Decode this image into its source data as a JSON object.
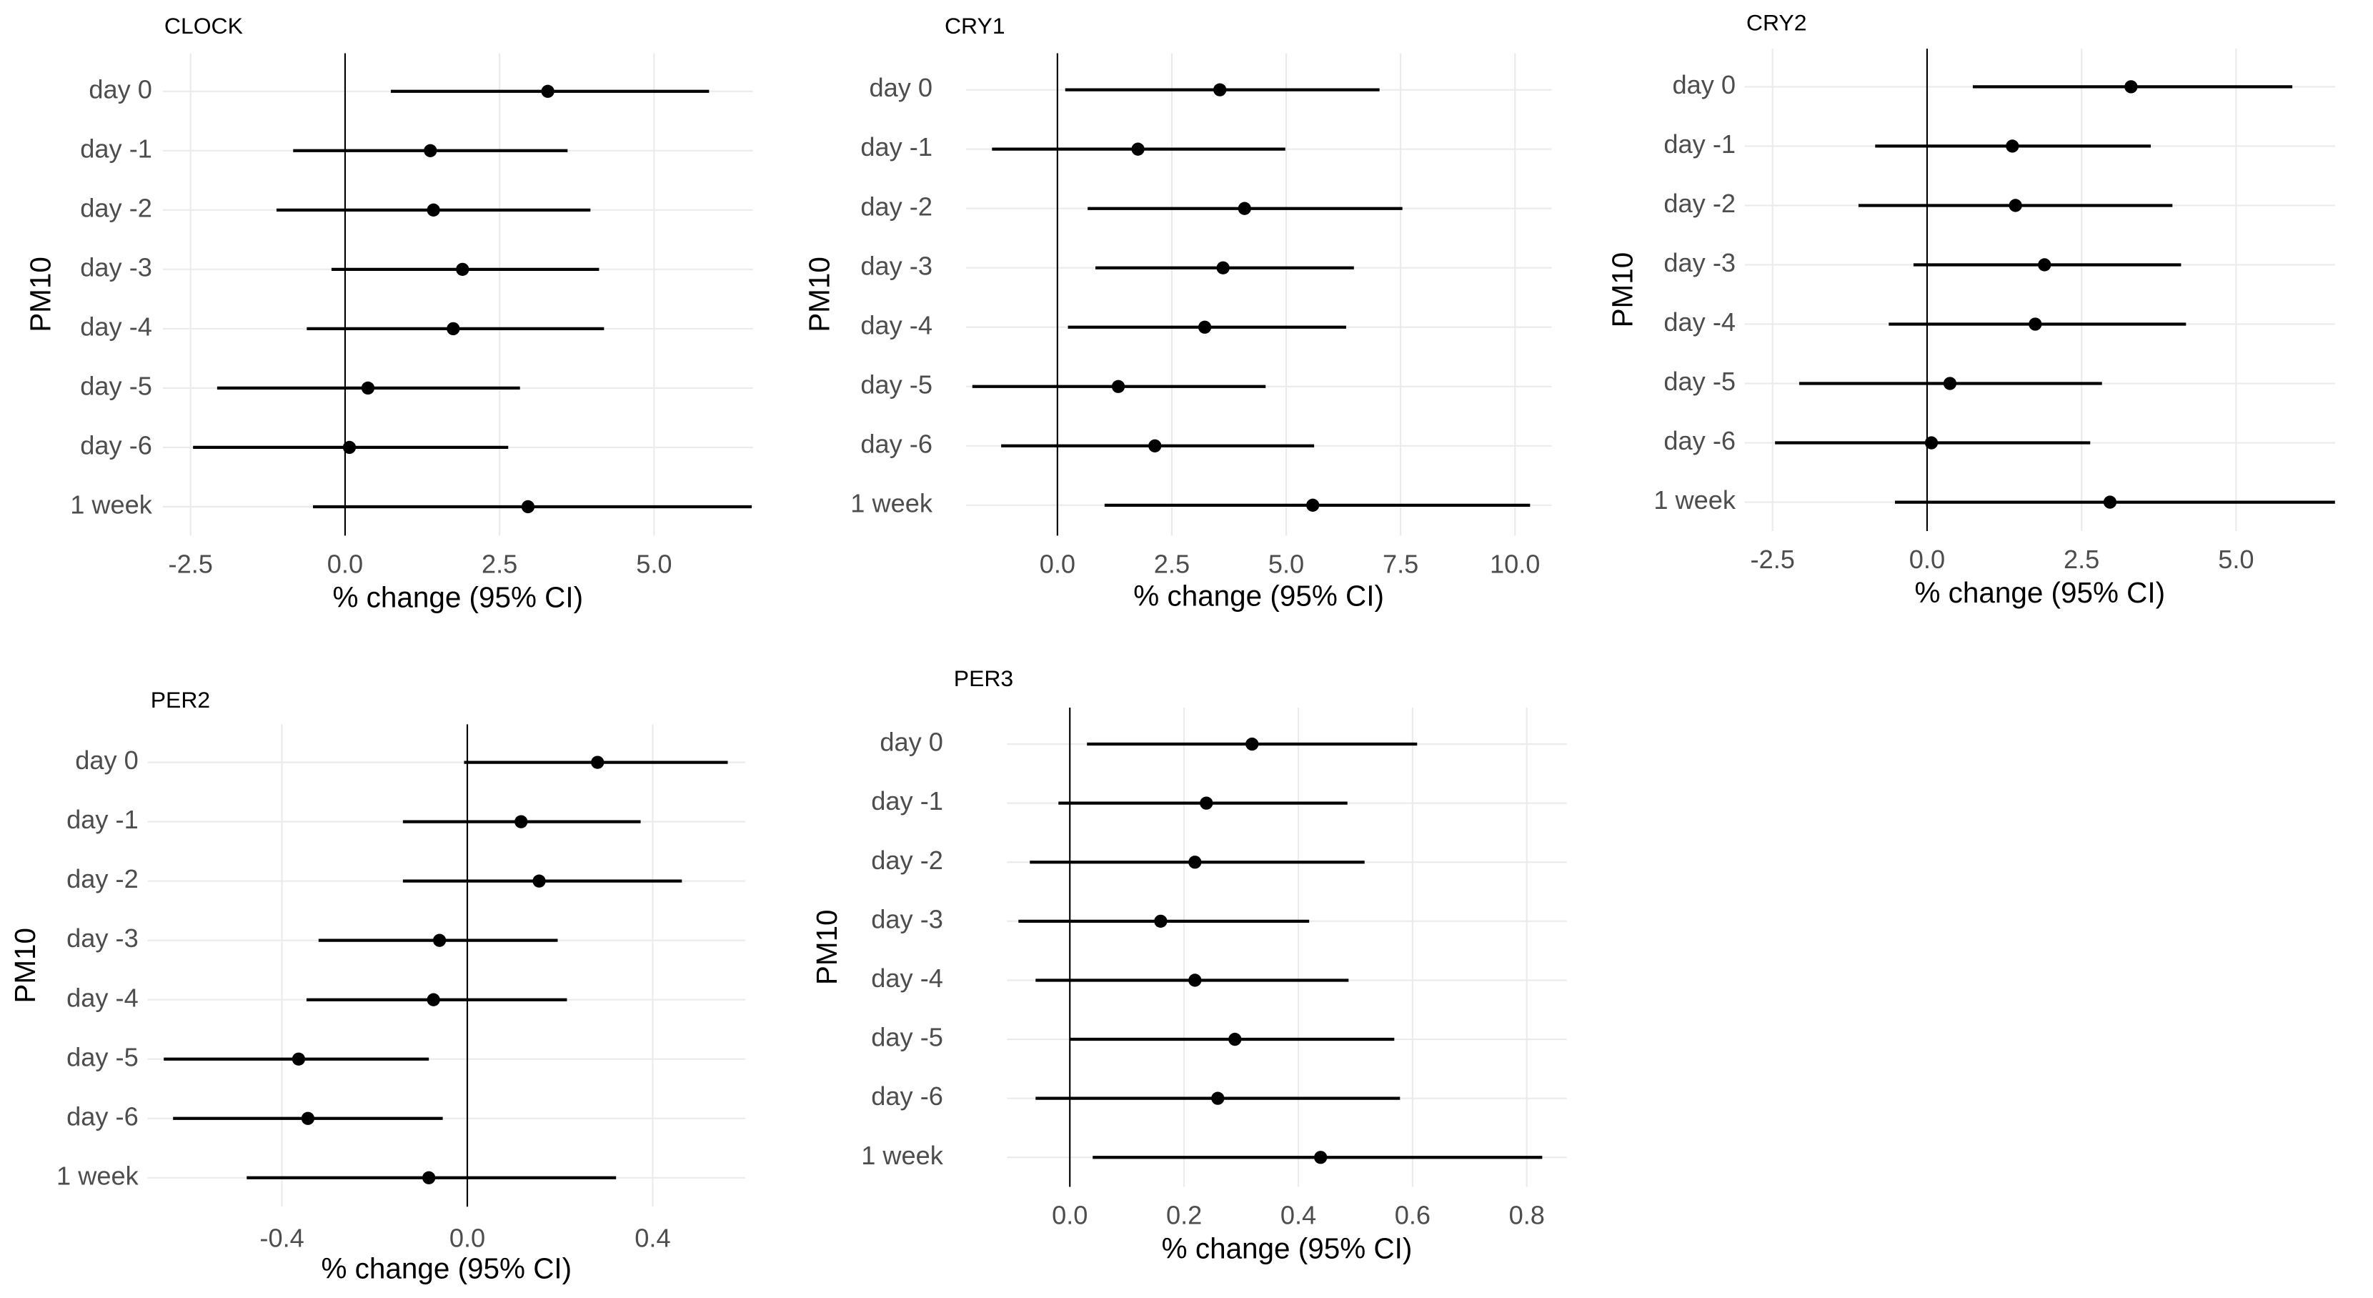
{
  "chart_data": [
    {
      "type": "forest",
      "title": "CLOCK",
      "xlabel": "% change (95% CI)",
      "ylabel": "PM10",
      "categories": [
        "day 0",
        "day -1",
        "day -2",
        "day -3",
        "day -4",
        "day -5",
        "day -6",
        "1 week"
      ],
      "values": [
        3.28,
        1.38,
        1.43,
        1.9,
        1.75,
        0.37,
        0.07,
        2.96
      ],
      "lower": [
        0.74,
        -0.84,
        -1.11,
        -0.22,
        -0.62,
        -2.07,
        -2.46,
        -0.52
      ],
      "upper": [
        5.89,
        3.6,
        3.97,
        4.11,
        4.19,
        2.83,
        2.64,
        6.58
      ],
      "xlim": [
        -2.95,
        6.6
      ],
      "xticks": [
        -2.5,
        {
          "value": 0,
          "label": "0.0"
        },
        2.5,
        {
          "value": 5,
          "label": "5.0"
        }
      ],
      "ref_line": 0,
      "grid": true,
      "color": "#000000"
    },
    {
      "type": "forest",
      "title": "CRY1",
      "xlabel": "% change (95% CI)",
      "ylabel": "PM10",
      "categories": [
        "day 0",
        "day -1",
        "day -2",
        "day -3",
        "day -4",
        "day -5",
        "day -6",
        "1 week"
      ],
      "values": [
        3.55,
        1.76,
        4.09,
        3.62,
        3.22,
        1.33,
        2.13,
        5.58
      ],
      "lower": [
        0.17,
        -1.43,
        0.66,
        0.83,
        0.23,
        -1.86,
        -1.23,
        1.03
      ],
      "upper": [
        7.04,
        4.98,
        7.54,
        6.48,
        6.31,
        4.55,
        5.61,
        10.33
      ],
      "xlim": [
        -2.0,
        10.8
      ],
      "xticks": [
        {
          "value": 0,
          "label": "0.0"
        },
        2.5,
        {
          "value": 5,
          "label": "5.0"
        },
        7.5,
        {
          "value": 10,
          "label": "10.0"
        }
      ],
      "ref_line": 0,
      "grid": true,
      "color": "#000000"
    },
    {
      "type": "forest",
      "title": "CRY2",
      "xlabel": "% change (95% CI)",
      "ylabel": "PM10",
      "categories": [
        "day 0",
        "day -1",
        "day -2",
        "day -3",
        "day -4",
        "day -5",
        "day -6",
        "1 week"
      ],
      "values": [
        3.3,
        1.38,
        1.43,
        1.9,
        1.75,
        0.37,
        0.07,
        2.96
      ],
      "lower": [
        0.74,
        -0.84,
        -1.11,
        -0.22,
        -0.62,
        -2.07,
        -2.46,
        -0.52
      ],
      "upper": [
        5.91,
        3.62,
        3.97,
        4.11,
        4.19,
        2.83,
        2.64,
        6.6
      ],
      "xlim": [
        -2.95,
        6.6
      ],
      "xticks": [
        -2.5,
        {
          "value": 0,
          "label": "0.0"
        },
        2.5,
        {
          "value": 5,
          "label": "5.0"
        }
      ],
      "ref_line": 0,
      "grid": true,
      "color": "#000000"
    },
    {
      "type": "forest",
      "title": "PER2",
      "xlabel": "% change (95% CI)",
      "ylabel": "PM10",
      "categories": [
        "day 0",
        "day -1",
        "day -2",
        "day -3",
        "day -4",
        "day -5",
        "day -6",
        "1 week"
      ],
      "values": [
        0.281,
        0.116,
        0.155,
        -0.06,
        -0.073,
        -0.364,
        -0.344,
        -0.083
      ],
      "lower": [
        -0.007,
        -0.139,
        -0.139,
        -0.321,
        -0.347,
        -0.655,
        -0.635,
        -0.476
      ],
      "upper": [
        0.562,
        0.374,
        0.463,
        0.195,
        0.215,
        -0.083,
        -0.053,
        0.321
      ],
      "xlim": [
        -0.69,
        0.6
      ],
      "xticks": [
        -0.4,
        {
          "value": 0,
          "label": "0.0"
        },
        0.4
      ],
      "ref_line": 0,
      "grid": true,
      "color": "#000000"
    },
    {
      "type": "forest",
      "title": "PER3",
      "xlabel": "% change (95% CI)",
      "ylabel": "PM10",
      "categories": [
        "day 0",
        "day -1",
        "day -2",
        "day -3",
        "day -4",
        "day -5",
        "day -6",
        "1 week"
      ],
      "values": [
        0.319,
        0.239,
        0.219,
        0.159,
        0.219,
        0.289,
        0.259,
        0.439
      ],
      "lower": [
        0.03,
        -0.02,
        -0.07,
        -0.09,
        -0.06,
        0.0,
        -0.06,
        0.04
      ],
      "upper": [
        0.608,
        0.486,
        0.516,
        0.419,
        0.488,
        0.568,
        0.578,
        0.827
      ],
      "xlim": [
        -0.11,
        0.87
      ],
      "xticks": [
        {
          "value": 0,
          "label": "0.0"
        },
        0.2,
        0.4,
        0.6,
        0.8
      ],
      "ref_line": 0,
      "grid": true,
      "color": "#000000"
    }
  ]
}
